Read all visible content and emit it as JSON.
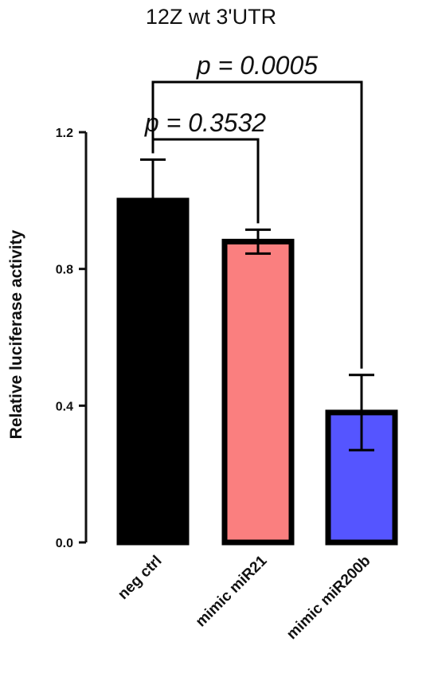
{
  "chart_data": {
    "type": "bar",
    "title": "12Z wt 3'UTR",
    "ylabel": "Relative luciferase activity",
    "xlabel": "",
    "ylim": [
      0,
      1.2
    ],
    "yticks": [
      "0.0",
      "0.4",
      "0.8",
      "1.2"
    ],
    "categories": [
      "neg ctrl",
      "mimic miR21",
      "mimic miR200b"
    ],
    "values": [
      1.0,
      0.88,
      0.38
    ],
    "error": [
      0.12,
      0.035,
      0.11
    ],
    "bar_colors": [
      "#000000",
      "#fa7f7f",
      "#5555ff"
    ],
    "comparisons": [
      {
        "from": "neg ctrl",
        "to": "mimic miR21",
        "label": "p = 0.3532"
      },
      {
        "from": "neg ctrl",
        "to": "mimic miR200b",
        "label": "p = 0.0005"
      }
    ],
    "grid": false,
    "legend": "none"
  }
}
